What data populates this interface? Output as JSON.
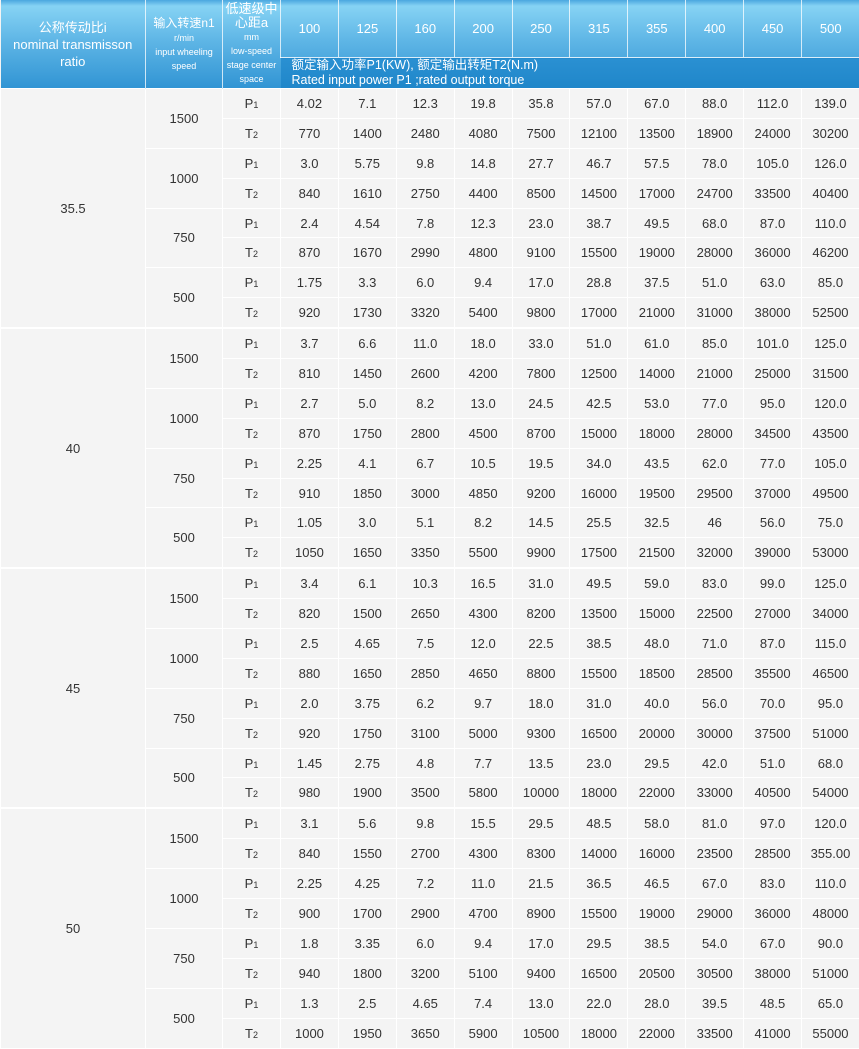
{
  "header": {
    "ratio_cn": "公称传动比i",
    "ratio_en": "nominal transmisson ratio",
    "speed_cn": "输入转速n1",
    "speed_unit": "r/min",
    "speed_en": "input wheeling speed",
    "center_cn": "低速级中心距a",
    "center_unit": "mm",
    "center_en": "low-speed stage center space",
    "sizes": [
      "100",
      "125",
      "160",
      "200",
      "250",
      "315",
      "355",
      "400",
      "450",
      "500"
    ],
    "rated_cn": "额定输入功率P1(KW), 额定输出转矩T2(N.m)",
    "rated_en": "Rated input power P1 ;rated output torque"
  },
  "labels": {
    "p": "P1",
    "t": "T2"
  },
  "colors": {
    "header_light": "#86d3f4",
    "header_dark": "#1f86c9",
    "body_bg": "#f4f4f4",
    "grid": "#ffffff"
  },
  "groups": [
    {
      "ratio": "35.5",
      "speeds": [
        {
          "n": "1500",
          "p1": [
            "4.02",
            "7.1",
            "12.3",
            "19.8",
            "35.8",
            "57.0",
            "67.0",
            "88.0",
            "112.0",
            "139.0"
          ],
          "t2": [
            "770",
            "1400",
            "2480",
            "4080",
            "7500",
            "12100",
            "13500",
            "18900",
            "24000",
            "30200"
          ]
        },
        {
          "n": "1000",
          "p1": [
            "3.0",
            "5.75",
            "9.8",
            "14.8",
            "27.7",
            "46.7",
            "57.5",
            "78.0",
            "105.0",
            "126.0"
          ],
          "t2": [
            "840",
            "1610",
            "2750",
            "4400",
            "8500",
            "14500",
            "17000",
            "24700",
            "33500",
            "40400"
          ]
        },
        {
          "n": "750",
          "p1": [
            "2.4",
            "4.54",
            "7.8",
            "12.3",
            "23.0",
            "38.7",
            "49.5",
            "68.0",
            "87.0",
            "110.0"
          ],
          "t2": [
            "870",
            "1670",
            "2990",
            "4800",
            "9100",
            "15500",
            "19000",
            "28000",
            "36000",
            "46200"
          ]
        },
        {
          "n": "500",
          "p1": [
            "1.75",
            "3.3",
            "6.0",
            "9.4",
            "17.0",
            "28.8",
            "37.5",
            "51.0",
            "63.0",
            "85.0"
          ],
          "t2": [
            "920",
            "1730",
            "3320",
            "5400",
            "9800",
            "17000",
            "21000",
            "31000",
            "38000",
            "52500"
          ]
        }
      ]
    },
    {
      "ratio": "40",
      "speeds": [
        {
          "n": "1500",
          "p1": [
            "3.7",
            "6.6",
            "11.0",
            "18.0",
            "33.0",
            "51.0",
            "61.0",
            "85.0",
            "101.0",
            "125.0"
          ],
          "t2": [
            "810",
            "1450",
            "2600",
            "4200",
            "7800",
            "12500",
            "14000",
            "21000",
            "25000",
            "31500"
          ]
        },
        {
          "n": "1000",
          "p1": [
            "2.7",
            "5.0",
            "8.2",
            "13.0",
            "24.5",
            "42.5",
            "53.0",
            "77.0",
            "95.0",
            "120.0"
          ],
          "t2": [
            "870",
            "1750",
            "2800",
            "4500",
            "8700",
            "15000",
            "18000",
            "28000",
            "34500",
            "43500"
          ]
        },
        {
          "n": "750",
          "p1": [
            "2.25",
            "4.1",
            "6.7",
            "10.5",
            "19.5",
            "34.0",
            "43.5",
            "62.0",
            "77.0",
            "105.0"
          ],
          "t2": [
            "910",
            "1850",
            "3000",
            "4850",
            "9200",
            "16000",
            "19500",
            "29500",
            "37000",
            "49500"
          ]
        },
        {
          "n": "500",
          "p1": [
            "1.05",
            "3.0",
            "5.1",
            "8.2",
            "14.5",
            "25.5",
            "32.5",
            "46",
            "56.0",
            "75.0"
          ],
          "t2": [
            "1050",
            "1650",
            "3350",
            "5500",
            "9900",
            "17500",
            "21500",
            "32000",
            "39000",
            "53000"
          ]
        }
      ]
    },
    {
      "ratio": "45",
      "speeds": [
        {
          "n": "1500",
          "p1": [
            "3.4",
            "6.1",
            "10.3",
            "16.5",
            "31.0",
            "49.5",
            "59.0",
            "83.0",
            "99.0",
            "125.0"
          ],
          "t2": [
            "820",
            "1500",
            "2650",
            "4300",
            "8200",
            "13500",
            "15000",
            "22500",
            "27000",
            "34000"
          ]
        },
        {
          "n": "1000",
          "p1": [
            "2.5",
            "4.65",
            "7.5",
            "12.0",
            "22.5",
            "38.5",
            "48.0",
            "71.0",
            "87.0",
            "115.0"
          ],
          "t2": [
            "880",
            "1650",
            "2850",
            "4650",
            "8800",
            "15500",
            "18500",
            "28500",
            "35500",
            "46500"
          ]
        },
        {
          "n": "750",
          "p1": [
            "2.0",
            "3.75",
            "6.2",
            "9.7",
            "18.0",
            "31.0",
            "40.0",
            "56.0",
            "70.0",
            "95.0"
          ],
          "t2": [
            "920",
            "1750",
            "3100",
            "5000",
            "9300",
            "16500",
            "20000",
            "30000",
            "37500",
            "51000"
          ]
        },
        {
          "n": "500",
          "p1": [
            "1.45",
            "2.75",
            "4.8",
            "7.7",
            "13.5",
            "23.0",
            "29.5",
            "42.0",
            "51.0",
            "68.0"
          ],
          "t2": [
            "980",
            "1900",
            "3500",
            "5800",
            "10000",
            "18000",
            "22000",
            "33000",
            "40500",
            "54000"
          ]
        }
      ]
    },
    {
      "ratio": "50",
      "speeds": [
        {
          "n": "1500",
          "p1": [
            "3.1",
            "5.6",
            "9.8",
            "15.5",
            "29.5",
            "48.5",
            "58.0",
            "81.0",
            "97.0",
            "120.0"
          ],
          "t2": [
            "840",
            "1550",
            "2700",
            "4300",
            "8300",
            "14000",
            "16000",
            "23500",
            "28500",
            "355.00"
          ]
        },
        {
          "n": "1000",
          "p1": [
            "2.25",
            "4.25",
            "7.2",
            "11.0",
            "21.5",
            "36.5",
            "46.5",
            "67.0",
            "83.0",
            "110.0"
          ],
          "t2": [
            "900",
            "1700",
            "2900",
            "4700",
            "8900",
            "15500",
            "19000",
            "29000",
            "36000",
            "48000"
          ]
        },
        {
          "n": "750",
          "p1": [
            "1.8",
            "3.35",
            "6.0",
            "9.4",
            "17.0",
            "29.5",
            "38.5",
            "54.0",
            "67.0",
            "90.0"
          ],
          "t2": [
            "940",
            "1800",
            "3200",
            "5100",
            "9400",
            "16500",
            "20500",
            "30500",
            "38000",
            "51000"
          ]
        },
        {
          "n": "500",
          "p1": [
            "1.3",
            "2.5",
            "4.65",
            "7.4",
            "13.0",
            "22.0",
            "28.0",
            "39.5",
            "48.5",
            "65.0"
          ],
          "t2": [
            "1000",
            "1950",
            "3650",
            "5900",
            "10500",
            "18000",
            "22000",
            "33500",
            "41000",
            "55000"
          ]
        }
      ]
    }
  ]
}
